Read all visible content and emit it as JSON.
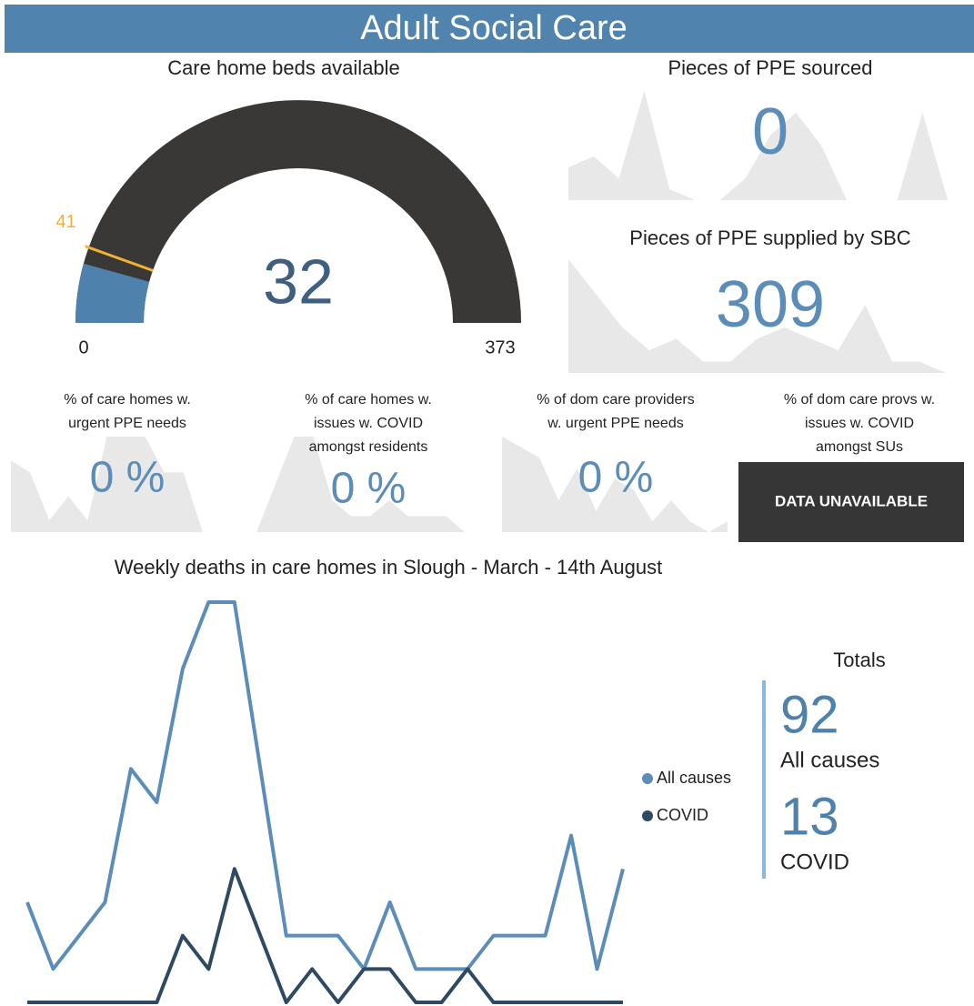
{
  "header": {
    "title": "Adult Social Care"
  },
  "gauge": {
    "title": "Care home beds available",
    "min": 0,
    "max": 373,
    "value": 32,
    "target": 41,
    "value_color": "#4f81ad",
    "track_color": "#3a3836",
    "target_color": "#f2b134"
  },
  "kpis": [
    {
      "title": [
        "Pieces of PPE sourced"
      ],
      "value": 0,
      "spark": [
        3,
        4,
        2,
        10,
        1,
        0,
        0,
        2,
        6,
        8,
        5,
        0,
        0,
        0,
        8,
        0,
        0
      ]
    },
    {
      "title": [
        "Pieces of PPE supplied by SBC"
      ],
      "value": 309,
      "spark": [
        10,
        7,
        4,
        2,
        3,
        1,
        1,
        3,
        4,
        3,
        2,
        6,
        1,
        1,
        0,
        0
      ]
    },
    {
      "title": [
        "% of care homes w.",
        "urgent PPE needs"
      ],
      "value": 0,
      "value_label": "0 %",
      "spark": [
        6,
        5,
        1,
        3,
        1,
        8,
        8,
        8,
        5,
        5,
        0,
        0,
        0
      ]
    },
    {
      "title": [
        "% of care homes w.",
        "issues w. COVID",
        "amongst residents"
      ],
      "value": 0,
      "value_label": "0 %",
      "spark": [
        0,
        3,
        6,
        6,
        2,
        1,
        1,
        2,
        1,
        1,
        1,
        0,
        0
      ]
    },
    {
      "title": [
        "% of dom care providers",
        "w. urgent PPE needs"
      ],
      "value": 0,
      "value_label": "0 %",
      "spark": [
        9,
        8,
        7,
        3,
        6,
        2,
        5,
        4,
        1,
        3,
        1,
        0,
        1
      ]
    },
    {
      "title": [
        "% of dom care provs w.",
        "issues w. COVID",
        "amongst SUs"
      ],
      "status": "DATA UNAVAILABLE"
    }
  ],
  "chart_data": {
    "type": "line",
    "title": "Weekly deaths in care homes in Slough - March - 14th August",
    "categories": [
      null,
      null,
      null,
      null,
      null,
      null,
      null,
      null,
      null,
      null,
      null,
      null,
      null,
      null,
      null,
      null,
      null,
      null,
      null,
      null,
      null,
      null,
      null,
      null
    ],
    "series": [
      {
        "name": "All causes",
        "color": "#5b8db8",
        "total": 92,
        "values": [
          3,
          1,
          2,
          3,
          7,
          6,
          10,
          12,
          12,
          7,
          2,
          2,
          2,
          1,
          3,
          1,
          1,
          1,
          2,
          2,
          2,
          5,
          1,
          4
        ]
      },
      {
        "name": "COVID",
        "color": "#2e4a63",
        "total": 13,
        "values": [
          0,
          0,
          0,
          0,
          0,
          0,
          2,
          1,
          4,
          2,
          0,
          1,
          0,
          1,
          1,
          0,
          0,
          1,
          0,
          0,
          0,
          0,
          0,
          0
        ]
      }
    ],
    "totals_title": "Totals"
  }
}
